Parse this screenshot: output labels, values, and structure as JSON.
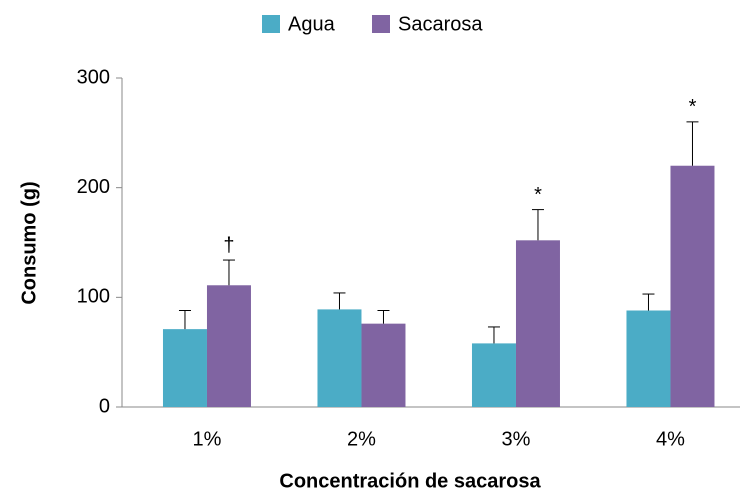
{
  "chart_data": {
    "type": "bar",
    "x_label": "Concentración  de sacarosa",
    "y_label": "Consumo (g)",
    "categories": [
      "1%",
      "2%",
      "3%",
      "4%"
    ],
    "series": [
      {
        "name": "Agua",
        "color": "#4bacc6",
        "values": [
          71,
          89,
          58,
          88
        ],
        "errors": [
          17,
          15,
          15,
          15
        ]
      },
      {
        "name": "Sacarosa",
        "color": "#8064a2",
        "values": [
          111,
          76,
          152,
          220
        ],
        "errors": [
          23,
          12,
          28,
          40
        ]
      }
    ],
    "annotations": [
      {
        "text": "†",
        "x": "1%",
        "series": "Sacarosa"
      },
      {
        "text": "*",
        "x": "3%",
        "series": "Sacarosa"
      },
      {
        "text": "*",
        "x": "4%",
        "series": "Sacarosa"
      }
    ],
    "ylim": [
      0,
      300
    ],
    "yticks": [
      0,
      100,
      200,
      300
    ]
  }
}
